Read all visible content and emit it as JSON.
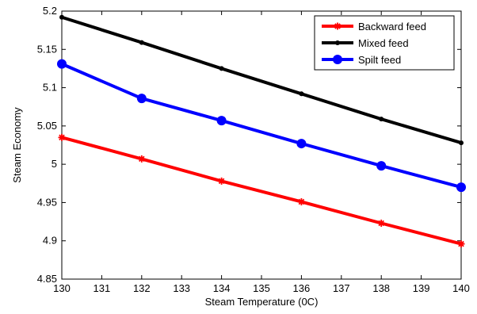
{
  "chart_data": {
    "type": "line",
    "xlabel": "Steam Temperature (0C)",
    "ylabel": "Steam Economy",
    "xlim": [
      130,
      140
    ],
    "ylim": [
      4.85,
      5.2
    ],
    "xticks": [
      "130",
      "131",
      "132",
      "133",
      "134",
      "135",
      "136",
      "137",
      "138",
      "139",
      "140"
    ],
    "yticks": [
      "4.85",
      "4.9",
      "4.95",
      "5",
      "5.05",
      "5.1",
      "5.15",
      "5.2"
    ],
    "grid": false,
    "legend_position": "top-right",
    "series": [
      {
        "name": "Backward feed",
        "color": "#ff0000",
        "marker": "star",
        "x": [
          130,
          132,
          134,
          136,
          138,
          140
        ],
        "values": [
          5.035,
          5.007,
          4.978,
          4.951,
          4.923,
          4.896
        ]
      },
      {
        "name": "Mixed feed",
        "color": "#000000",
        "marker": "dot",
        "x": [
          130,
          132,
          134,
          136,
          138,
          140
        ],
        "values": [
          5.192,
          5.159,
          5.125,
          5.092,
          5.059,
          5.028
        ]
      },
      {
        "name": "Spilt feed",
        "color": "#0000ff",
        "marker": "circle",
        "x": [
          130,
          132,
          134,
          136,
          138,
          140
        ],
        "values": [
          5.131,
          5.086,
          5.057,
          5.027,
          4.998,
          4.97
        ]
      }
    ]
  }
}
